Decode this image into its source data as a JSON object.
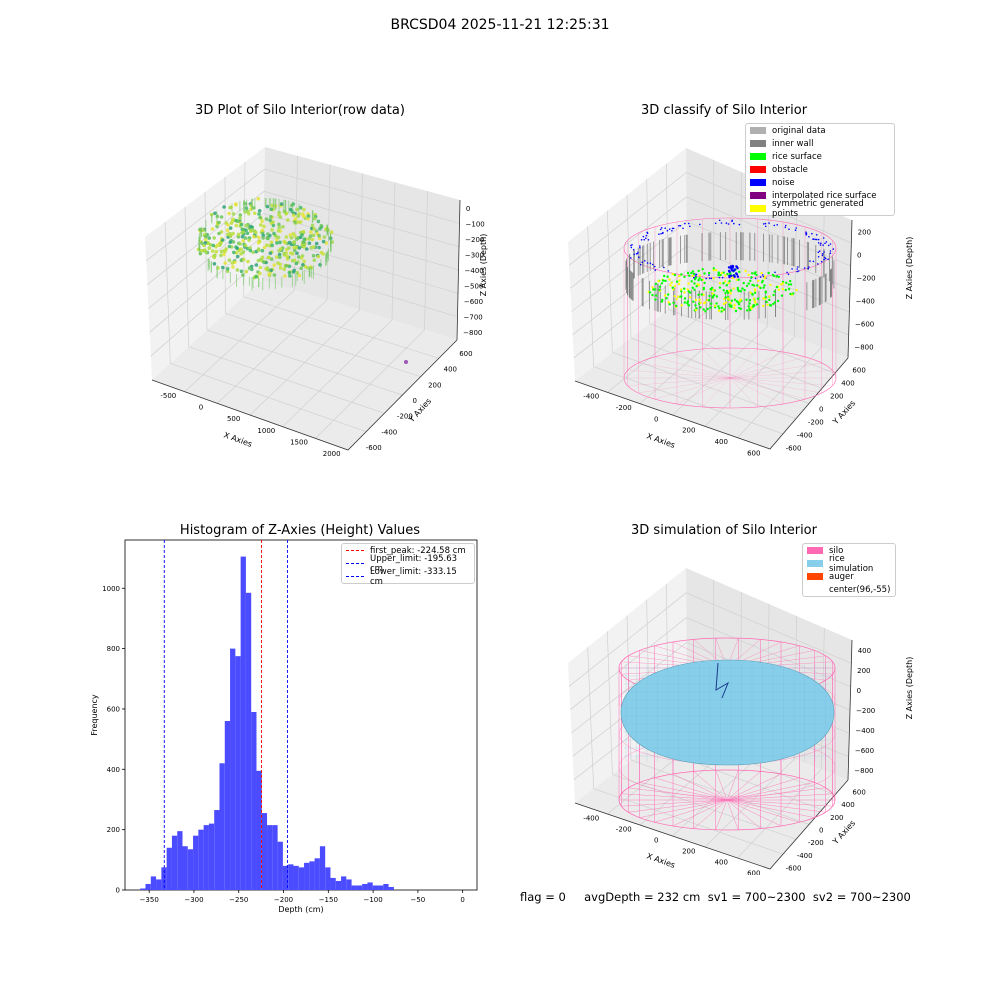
{
  "figure": {
    "suptitle": "BRCSD04 2025-11-21 12:25:31",
    "footer": "flag = 0     avgDepth = 232 cm  sv1 = 700~2300  sv2 = 700~2300"
  },
  "colors": {
    "original_data": "#b0b0b0",
    "inner_wall": "#808080",
    "rice_surface": "#00ff00",
    "obstacle": "#ff0000",
    "noise": "#0000ff",
    "interpolated_rice_surface": "#800080",
    "symmetric_generated_points": "#ffff00",
    "silo": "#ff69b4",
    "rice_simulation": "#87ceeb",
    "auger": "#ff4500",
    "histogram_bar": "#4b4bff"
  },
  "chart_data": [
    {
      "type": "scatter",
      "title": "3D Plot of Silo Interior(row data)",
      "xlabel": "X Axies",
      "ylabel": "Y Axies",
      "zlabel": "Z Axies (Depth)",
      "x_ticks": [
        "-500",
        "0",
        "500",
        "1000",
        "1500",
        "2000"
      ],
      "y_ticks": [
        "-600",
        "-400",
        "-200",
        "0",
        "200",
        "400",
        "600"
      ],
      "z_ticks": [
        "0",
        "−100",
        "−200",
        "−300",
        "−400",
        "−500",
        "−600",
        "−700",
        "−800"
      ],
      "colormap": "viridis-like (yellow-green)",
      "grid": true
    },
    {
      "type": "scatter",
      "title": "3D classify of Silo Interior",
      "xlabel": "X Axies",
      "ylabel": "Y Axies",
      "zlabel": "Z Axies (Depth)",
      "x_ticks": [
        "-400",
        "-200",
        "0",
        "200",
        "400",
        "600"
      ],
      "y_ticks": [
        "-600",
        "-400",
        "-200",
        "0",
        "200",
        "400",
        "600"
      ],
      "z_ticks": [
        "200",
        "0",
        "−200",
        "−400",
        "−600",
        "−800"
      ],
      "legend_position": "top-right",
      "legend": [
        "original data",
        "inner wall",
        "rice surface",
        "obstacle",
        "noise",
        "interpolated rice surface",
        "symmetric generated points"
      ],
      "grid": true
    },
    {
      "type": "bar",
      "title": "Histogram of Z-Axies (Height) Values",
      "xlabel": "Depth (cm)",
      "ylabel": "Frequency",
      "xlim": [
        -377,
        16
      ],
      "ylim": [
        0,
        1160
      ],
      "x_ticks": [
        -350,
        -300,
        -250,
        -200,
        -150,
        -100,
        -50,
        0
      ],
      "x_tick_labels": [
        "−350",
        "−300",
        "−250",
        "−200",
        "−150",
        "−100",
        "−50",
        "0"
      ],
      "y_ticks": [
        0,
        200,
        400,
        600,
        800,
        1000
      ],
      "y_tick_labels": [
        "0",
        "200",
        "400",
        "600",
        "800",
        "1000"
      ],
      "bin_width": 5.9,
      "bin_start": -360,
      "values": [
        5,
        20,
        45,
        35,
        75,
        140,
        180,
        195,
        145,
        135,
        180,
        200,
        215,
        220,
        265,
        420,
        560,
        800,
        775,
        1105,
        985,
        590,
        395,
        255,
        215,
        215,
        160,
        80,
        85,
        80,
        75,
        90,
        95,
        105,
        145,
        75,
        40,
        30,
        45,
        35,
        15,
        15,
        20,
        25,
        15,
        15,
        20,
        10
      ],
      "vlines": [
        {
          "label": "first_peak: -224.58 cm",
          "x": -224.58,
          "color": "#ff0000"
        },
        {
          "label": "Upper_limit: -195.63 cm",
          "x": -195.63,
          "color": "#0000ff"
        },
        {
          "label": "Lower_limit: -333.15 cm",
          "x": -333.15,
          "color": "#0000ff"
        }
      ],
      "legend_position": "top-right"
    },
    {
      "type": "surface",
      "title": "3D simulation of Silo Interior",
      "xlabel": "X Axies",
      "ylabel": "Y Axies",
      "zlabel": "Z Axies (Depth)",
      "x_ticks": [
        "-400",
        "-200",
        "0",
        "200",
        "400",
        "600"
      ],
      "y_ticks": [
        "-600",
        "-400",
        "-200",
        "0",
        "200",
        "400",
        "600"
      ],
      "z_ticks": [
        "400",
        "200",
        "0",
        "−200",
        "−400",
        "−600",
        "−800"
      ],
      "legend_position": "top-right",
      "legend": [
        "silo",
        "rice simulation",
        "auger",
        "center(96,-55)"
      ],
      "grid": true
    }
  ]
}
